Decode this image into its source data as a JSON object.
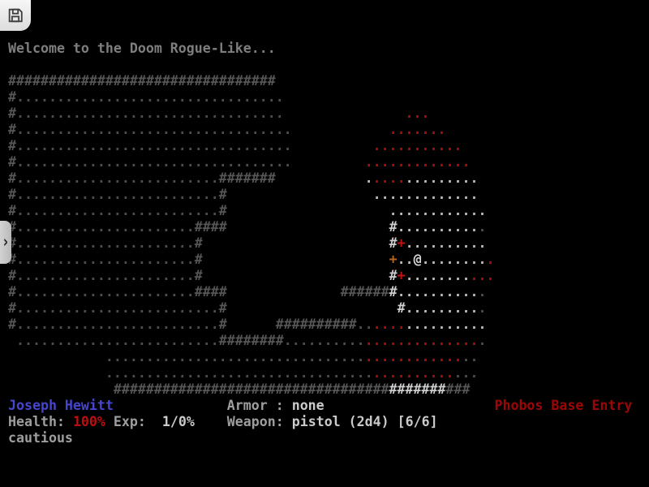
{
  "message": {
    "text": "Welcome to the Doom Rogue-Like..."
  },
  "toolbar": {
    "save_icon": "floppy-disk-icon"
  },
  "drawer": {
    "chevron": "›"
  },
  "palette": {
    "message_gray": "#7e7e7e",
    "w": "#565656",
    "W": "#cdcdcd",
    "d": "#4e4e4e",
    "D": "#bcbcbc",
    "r": "#a81010",
    "R": "#c01313",
    "o": "#b4651e",
    "p": "#d8d8d8",
    "label": "#9e9e9e",
    "value": "#cacaca",
    "name": "#4545cf",
    "health": "#bb0f0f",
    "location": "#9b0606",
    "button_bg": "#eeeeee",
    "background": "#000000"
  },
  "map": {
    "glyph_legend": {
      "#": "wall",
      ".": "floor",
      "@": "player",
      "+": "door"
    },
    "rows": [
      [
        {
          "c": 0,
          "ch": "#",
          "n": 33,
          "k": "w"
        }
      ],
      [
        {
          "c": 0,
          "ch": "#",
          "n": 1,
          "k": "w"
        },
        {
          "c": 1,
          "ch": ".",
          "n": 33,
          "k": "d"
        }
      ],
      [
        {
          "c": 0,
          "ch": "#",
          "n": 1,
          "k": "w"
        },
        {
          "c": 1,
          "ch": ".",
          "n": 33,
          "k": "d"
        },
        {
          "c": 49,
          "ch": ".",
          "n": 3,
          "k": "r"
        }
      ],
      [
        {
          "c": 0,
          "ch": "#",
          "n": 1,
          "k": "w"
        },
        {
          "c": 1,
          "ch": ".",
          "n": 34,
          "k": "d"
        },
        {
          "c": 47,
          "ch": ".",
          "n": 7,
          "k": "r"
        }
      ],
      [
        {
          "c": 0,
          "ch": "#",
          "n": 1,
          "k": "w"
        },
        {
          "c": 1,
          "ch": ".",
          "n": 34,
          "k": "d"
        },
        {
          "c": 45,
          "ch": ".",
          "n": 11,
          "k": "r"
        }
      ],
      [
        {
          "c": 0,
          "ch": "#",
          "n": 1,
          "k": "w"
        },
        {
          "c": 1,
          "ch": ".",
          "n": 34,
          "k": "d"
        },
        {
          "c": 44,
          "ch": ".",
          "n": 13,
          "k": "r"
        }
      ],
      [
        {
          "c": 0,
          "ch": "#",
          "n": 1,
          "k": "w"
        },
        {
          "c": 1,
          "ch": ".",
          "n": 25,
          "k": "d"
        },
        {
          "c": 26,
          "ch": "#",
          "n": 7,
          "k": "w"
        },
        {
          "c": 44,
          "ch": ".",
          "n": 1,
          "k": "D"
        },
        {
          "c": 45,
          "ch": ".",
          "n": 4,
          "k": "r"
        },
        {
          "c": 49,
          "ch": ".",
          "n": 9,
          "k": "D"
        }
      ],
      [
        {
          "c": 0,
          "ch": "#",
          "n": 1,
          "k": "w"
        },
        {
          "c": 1,
          "ch": ".",
          "n": 25,
          "k": "d"
        },
        {
          "c": 26,
          "ch": "#",
          "n": 1,
          "k": "w"
        },
        {
          "c": 45,
          "ch": ".",
          "n": 13,
          "k": "D"
        }
      ],
      [
        {
          "c": 0,
          "ch": "#",
          "n": 1,
          "k": "w"
        },
        {
          "c": 1,
          "ch": ".",
          "n": 25,
          "k": "d"
        },
        {
          "c": 26,
          "ch": "#",
          "n": 1,
          "k": "w"
        },
        {
          "c": 47,
          "ch": ".",
          "n": 12,
          "k": "D"
        }
      ],
      [
        {
          "c": 0,
          "ch": "#",
          "n": 1,
          "k": "w"
        },
        {
          "c": 1,
          "ch": ".",
          "n": 22,
          "k": "d"
        },
        {
          "c": 23,
          "ch": "#",
          "n": 4,
          "k": "w"
        },
        {
          "c": 47,
          "ch": "#",
          "n": 1,
          "k": "W"
        },
        {
          "c": 48,
          "ch": ".",
          "n": 10,
          "k": "D"
        },
        {
          "c": 58,
          "ch": ".",
          "n": 1,
          "k": "d"
        }
      ],
      [
        {
          "c": 0,
          "ch": "#",
          "n": 1,
          "k": "w"
        },
        {
          "c": 1,
          "ch": ".",
          "n": 22,
          "k": "d"
        },
        {
          "c": 23,
          "ch": "#",
          "n": 1,
          "k": "w"
        },
        {
          "c": 47,
          "ch": "#",
          "n": 1,
          "k": "W"
        },
        {
          "c": 48,
          "t": "+",
          "k": "R"
        },
        {
          "c": 49,
          "ch": ".",
          "n": 10,
          "k": "D"
        }
      ],
      [
        {
          "c": 0,
          "ch": "#",
          "n": 1,
          "k": "w"
        },
        {
          "c": 1,
          "ch": ".",
          "n": 22,
          "k": "d"
        },
        {
          "c": 23,
          "ch": "#",
          "n": 1,
          "k": "w"
        },
        {
          "c": 47,
          "t": "+",
          "k": "o"
        },
        {
          "c": 48,
          "ch": ".",
          "n": 2,
          "k": "D"
        },
        {
          "c": 50,
          "t": "@",
          "k": "p"
        },
        {
          "c": 51,
          "ch": ".",
          "n": 8,
          "k": "D"
        },
        {
          "c": 59,
          "ch": ".",
          "n": 1,
          "k": "r"
        }
      ],
      [
        {
          "c": 0,
          "ch": "#",
          "n": 1,
          "k": "w"
        },
        {
          "c": 1,
          "ch": ".",
          "n": 22,
          "k": "d"
        },
        {
          "c": 23,
          "ch": "#",
          "n": 1,
          "k": "w"
        },
        {
          "c": 47,
          "ch": "#",
          "n": 1,
          "k": "W"
        },
        {
          "c": 48,
          "t": "+",
          "k": "R"
        },
        {
          "c": 49,
          "ch": ".",
          "n": 8,
          "k": "D"
        },
        {
          "c": 57,
          "ch": ".",
          "n": 3,
          "k": "r"
        }
      ],
      [
        {
          "c": 0,
          "ch": "#",
          "n": 1,
          "k": "w"
        },
        {
          "c": 1,
          "ch": ".",
          "n": 22,
          "k": "d"
        },
        {
          "c": 23,
          "ch": "#",
          "n": 4,
          "k": "w"
        },
        {
          "c": 41,
          "ch": "#",
          "n": 6,
          "k": "w"
        },
        {
          "c": 47,
          "ch": "#",
          "n": 1,
          "k": "W"
        },
        {
          "c": 48,
          "ch": ".",
          "n": 10,
          "k": "D"
        },
        {
          "c": 58,
          "ch": ".",
          "n": 1,
          "k": "d"
        }
      ],
      [
        {
          "c": 0,
          "ch": "#",
          "n": 1,
          "k": "w"
        },
        {
          "c": 1,
          "ch": ".",
          "n": 25,
          "k": "d"
        },
        {
          "c": 26,
          "ch": "#",
          "n": 1,
          "k": "w"
        },
        {
          "c": 48,
          "ch": "#",
          "n": 1,
          "k": "W"
        },
        {
          "c": 49,
          "ch": ".",
          "n": 9,
          "k": "D"
        },
        {
          "c": 58,
          "ch": ".",
          "n": 1,
          "k": "d"
        }
      ],
      [
        {
          "c": 0,
          "ch": "#",
          "n": 1,
          "k": "w"
        },
        {
          "c": 1,
          "ch": ".",
          "n": 25,
          "k": "d"
        },
        {
          "c": 26,
          "ch": "#",
          "n": 1,
          "k": "w"
        },
        {
          "c": 33,
          "ch": "#",
          "n": 10,
          "k": "w"
        },
        {
          "c": 43,
          "ch": ".",
          "n": 2,
          "k": "d"
        },
        {
          "c": 45,
          "ch": ".",
          "n": 4,
          "k": "r"
        },
        {
          "c": 49,
          "ch": ".",
          "n": 10,
          "k": "D"
        }
      ],
      [
        {
          "c": 1,
          "ch": ".",
          "n": 25,
          "k": "d"
        },
        {
          "c": 26,
          "ch": "#",
          "n": 8,
          "k": "w"
        },
        {
          "c": 34,
          "ch": ".",
          "n": 10,
          "k": "d"
        },
        {
          "c": 44,
          "ch": ".",
          "n": 14,
          "k": "r"
        },
        {
          "c": 58,
          "ch": ".",
          "n": 1,
          "k": "d"
        }
      ],
      [
        {
          "c": 12,
          "ch": ".",
          "n": 32,
          "k": "d"
        },
        {
          "c": 44,
          "ch": ".",
          "n": 12,
          "k": "r"
        },
        {
          "c": 56,
          "ch": ".",
          "n": 2,
          "k": "d"
        }
      ],
      [
        {
          "c": 12,
          "ch": ".",
          "n": 33,
          "k": "d"
        },
        {
          "c": 45,
          "ch": ".",
          "n": 10,
          "k": "r"
        },
        {
          "c": 55,
          "ch": ".",
          "n": 3,
          "k": "d"
        }
      ],
      [
        {
          "c": 13,
          "ch": "#",
          "n": 34,
          "k": "w"
        },
        {
          "c": 47,
          "ch": "#",
          "n": 7,
          "k": "W"
        },
        {
          "c": 54,
          "ch": "#",
          "n": 3,
          "k": "w"
        }
      ]
    ]
  },
  "status": {
    "player_name": "Joseph Hewitt",
    "health_label": "Health:",
    "health_value": "100%",
    "exp_label": "Exp:",
    "exp_value": "1/0%",
    "armor_label": "Armor",
    "armor_separator": ":",
    "armor_value": "none",
    "weapon_label": "Weapon:",
    "weapon_value": "pistol (2d4) [6/6]",
    "tactic": "cautious",
    "location": "Phobos Base Entry"
  },
  "status_layout": [
    [
      {
        "c": 0,
        "ref": "player_name",
        "k": "name"
      },
      {
        "c": 27,
        "ref": "armor_label",
        "k": "label"
      },
      {
        "c": 33,
        "ref": "armor_separator",
        "k": "label"
      },
      {
        "c": 35,
        "ref": "armor_value",
        "k": "value"
      },
      {
        "c": 60,
        "ref": "location",
        "k": "location"
      }
    ],
    [
      {
        "c": 0,
        "ref": "health_label",
        "k": "label"
      },
      {
        "c": 8,
        "ref": "health_value",
        "k": "health"
      },
      {
        "c": 13,
        "ref": "exp_label",
        "k": "label"
      },
      {
        "c": 19,
        "ref": "exp_value",
        "k": "value"
      },
      {
        "c": 27,
        "ref": "weapon_label",
        "k": "label"
      },
      {
        "c": 35,
        "ref": "weapon_value",
        "k": "value"
      }
    ],
    [
      {
        "c": 0,
        "ref": "tactic",
        "k": "label"
      }
    ]
  ]
}
